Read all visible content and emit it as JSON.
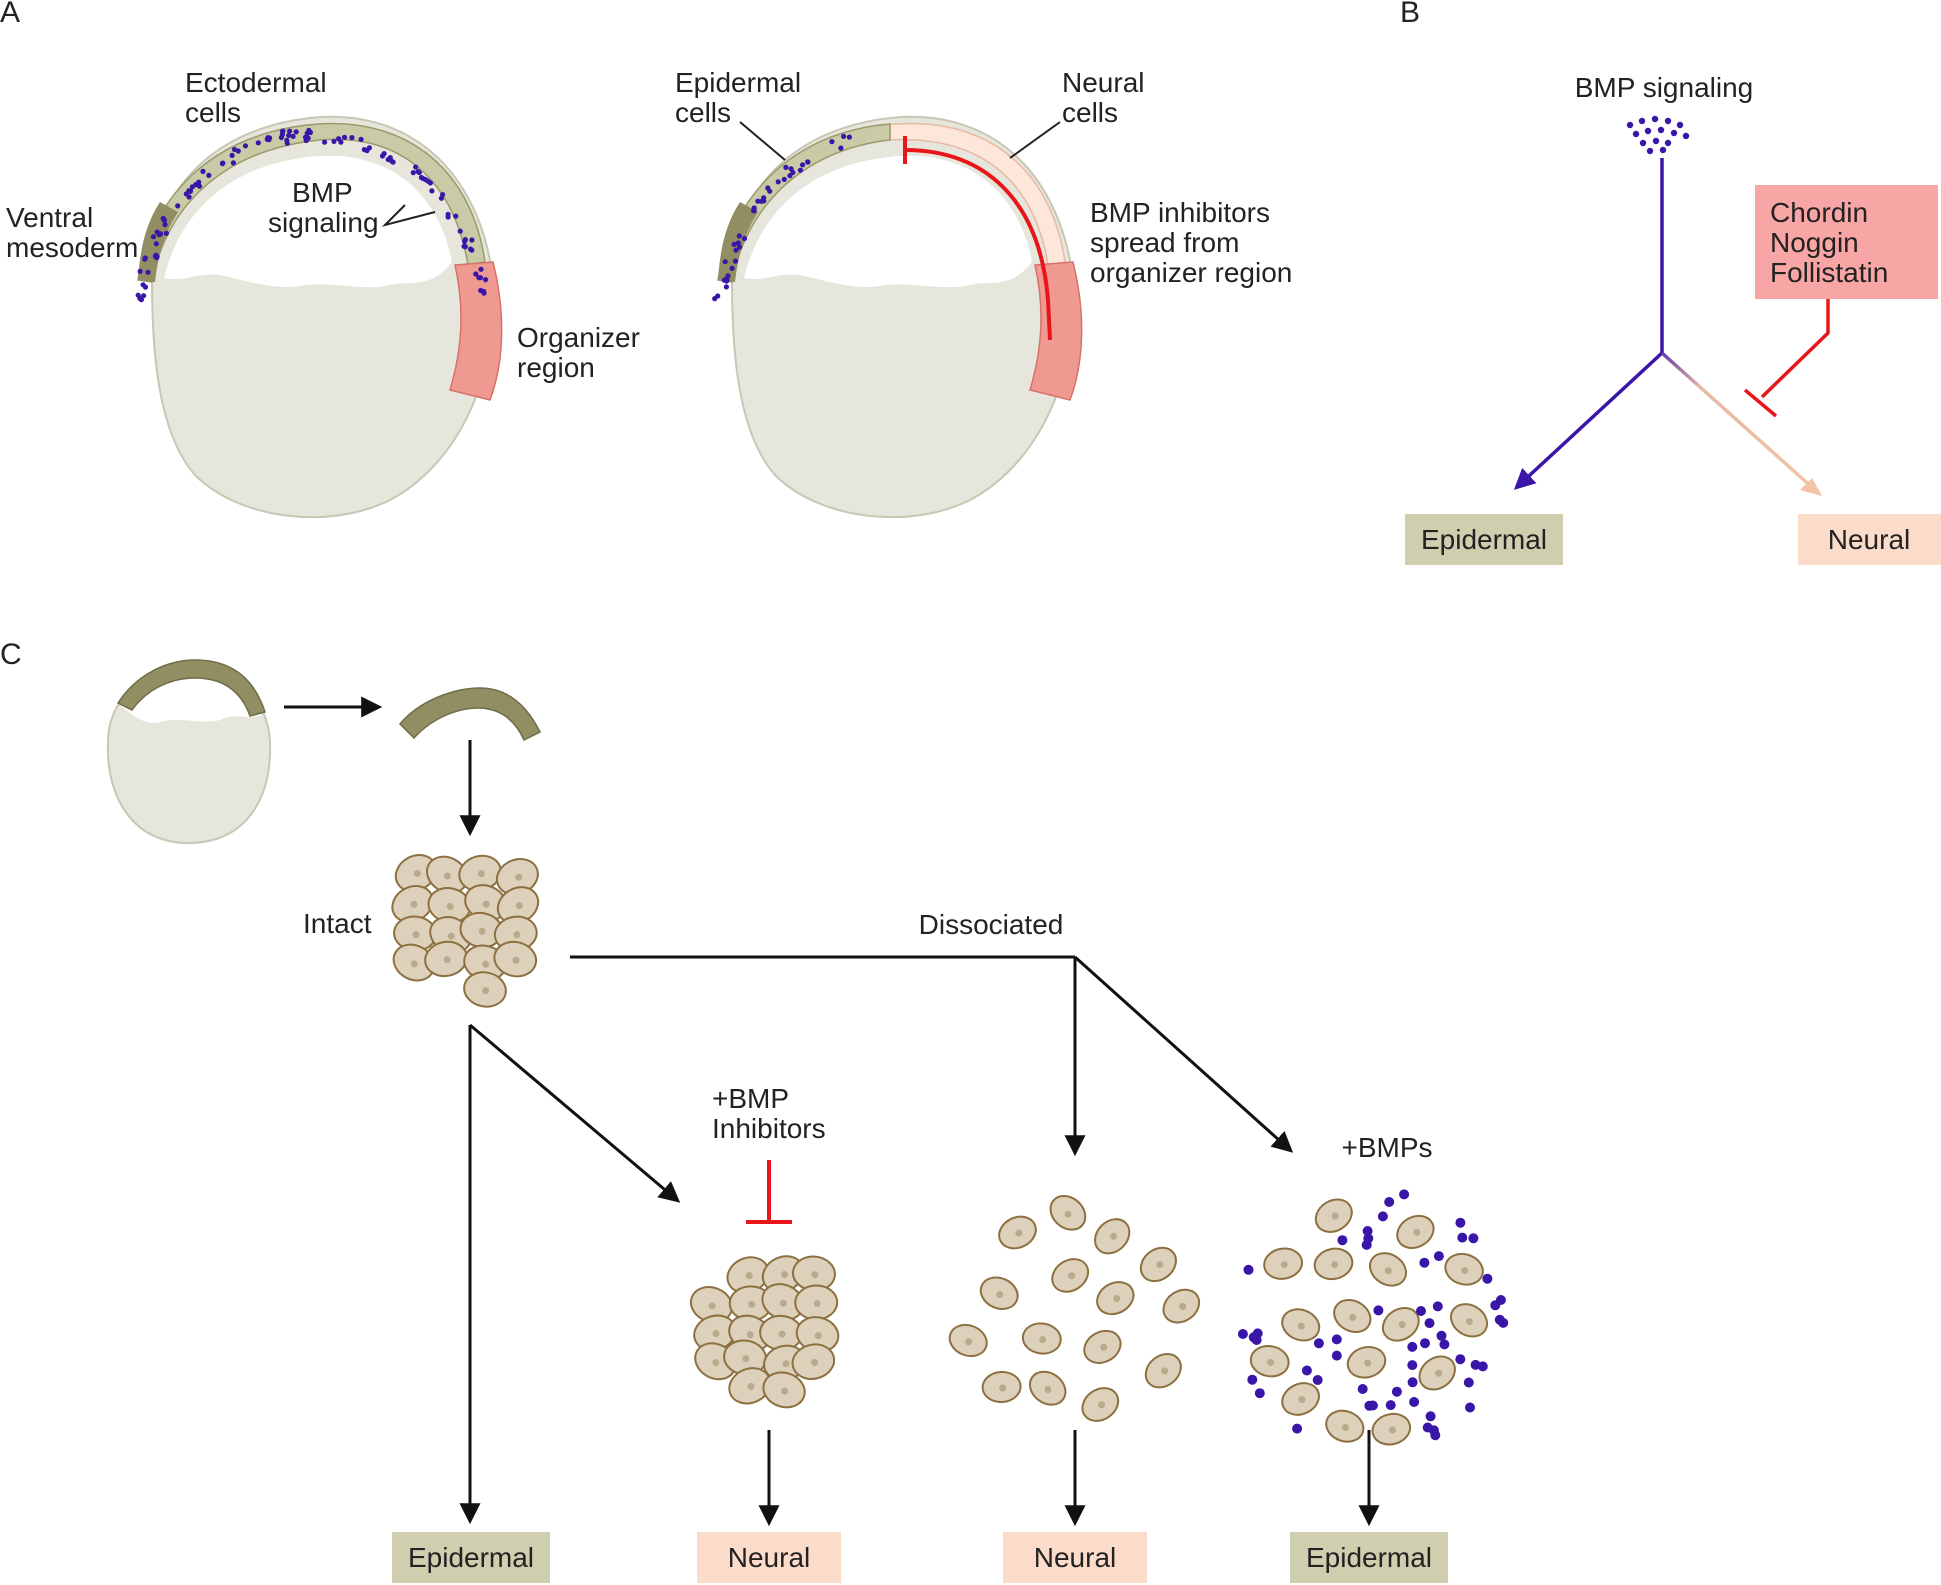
{
  "colors": {
    "ectoderm": "#c9caa6",
    "mesoderm": "#908e62",
    "yolk": "#e7e6dc",
    "organizer": "#ef9a90",
    "neural": "#fbdccb",
    "neural_light": "#fde6da",
    "bmp_dot": "#3a16a8",
    "inhibitor": "#e8161b",
    "epidermal_box": "#cfceae",
    "neural_box": "#fbdccb",
    "inhibitor_box": "#f7a5a5",
    "cell_fill": "#ddd1bc",
    "cell_stroke": "#8c7040",
    "arrow": "#111111"
  },
  "panel_a": {
    "label": "A",
    "left": {
      "ectodermal": "Ectodermal",
      "ectodermal2": "cells",
      "ventral": "Ventral",
      "ventral2": "mesoderm",
      "bmp": "BMP",
      "bmp2": "signaling",
      "organizer": "Organizer",
      "organizer2": "region"
    },
    "right": {
      "epidermal": "Epidermal",
      "epidermal2": "cells",
      "neural": "Neural",
      "neural2": "cells",
      "inhib1": "BMP inhibitors",
      "inhib2": "spread from",
      "inhib3": "organizer region"
    }
  },
  "panel_b": {
    "label": "B",
    "bmp_signaling": "BMP signaling",
    "inhibitors": [
      "Chordin",
      "Noggin",
      "Follistatin"
    ],
    "epidermal": "Epidermal",
    "neural": "Neural"
  },
  "panel_c": {
    "label": "C",
    "intact": "Intact",
    "dissociated": "Dissociated",
    "bmp_inhib1": "+BMP",
    "bmp_inhib2": "Inhibitors",
    "bmps": "+BMPs",
    "outcomes": [
      "Epidermal",
      "Neural",
      "Neural",
      "Epidermal"
    ]
  }
}
